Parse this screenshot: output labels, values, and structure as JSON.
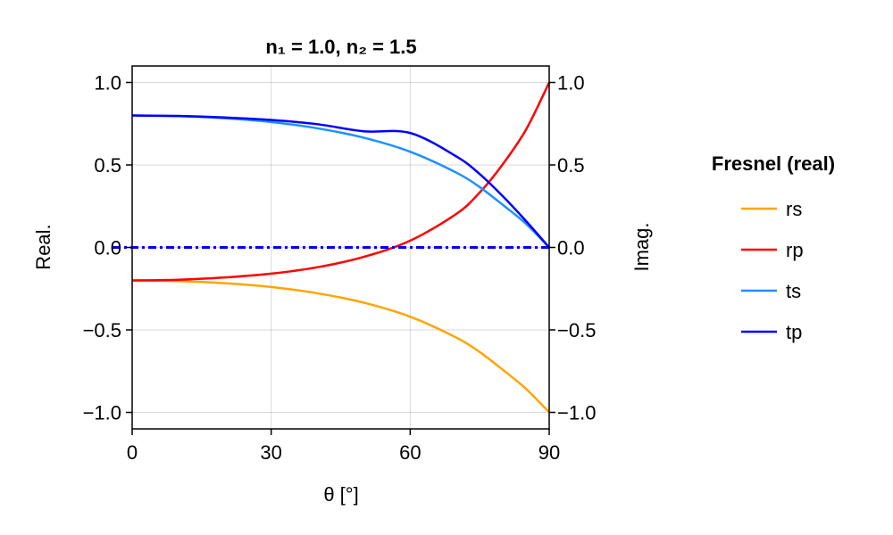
{
  "chart_data": {
    "type": "line",
    "title": "n₁ = 1.0, n₂ = 1.5",
    "xlabel": "θ [°]",
    "ylabel_left": "Real.",
    "ylabel_right": "Imag.",
    "xlim": [
      0,
      90
    ],
    "ylim": [
      -1.1,
      1.1
    ],
    "x_ticks": [
      0,
      30,
      60,
      90
    ],
    "y_ticks": [
      -1.0,
      -0.5,
      0.0,
      0.5,
      1.0
    ],
    "x_tick_labels": [
      "0",
      "30",
      "60",
      "90"
    ],
    "y_tick_labels": [
      "−1.0",
      "−0.5",
      "0.0",
      "0.5",
      "1.0"
    ],
    "grid": true,
    "legend": {
      "title": "Fresnel (real)",
      "placement": "right",
      "entries": [
        "rs",
        "rp",
        "ts",
        "tp"
      ]
    },
    "x": [
      0,
      10,
      20,
      30,
      40,
      50,
      60,
      70,
      75,
      80,
      85,
      90
    ],
    "series": [
      {
        "name": "rs",
        "color": "#ffa500",
        "style": "solid",
        "values": [
          -0.2,
          -0.204,
          -0.217,
          -0.24,
          -0.278,
          -0.335,
          -0.42,
          -0.547,
          -0.634,
          -0.742,
          -0.857,
          -1.0
        ]
      },
      {
        "name": "rp",
        "color": "#ff0000",
        "style": "solid",
        "values": [
          -0.2,
          -0.196,
          -0.182,
          -0.159,
          -0.12,
          -0.057,
          0.041,
          0.204,
          0.333,
          0.505,
          0.714,
          1.0
        ]
      },
      {
        "name": "ts",
        "color": "#1e90ff",
        "style": "solid",
        "values": [
          0.8,
          0.796,
          0.783,
          0.76,
          0.722,
          0.665,
          0.58,
          0.453,
          0.366,
          0.258,
          0.143,
          0.0
        ]
      },
      {
        "name": "tp",
        "color": "#0000ff",
        "style": "solid",
        "values": [
          0.8,
          0.797,
          0.788,
          0.773,
          0.747,
          0.704,
          0.694,
          0.551,
          0.445,
          0.31,
          0.16,
          0.0
        ]
      },
      {
        "name": "",
        "color": "#0000ff",
        "style": "dashdot",
        "values": [
          0,
          0,
          0,
          0,
          0,
          0,
          0,
          0,
          0,
          0,
          0,
          0
        ]
      }
    ]
  }
}
